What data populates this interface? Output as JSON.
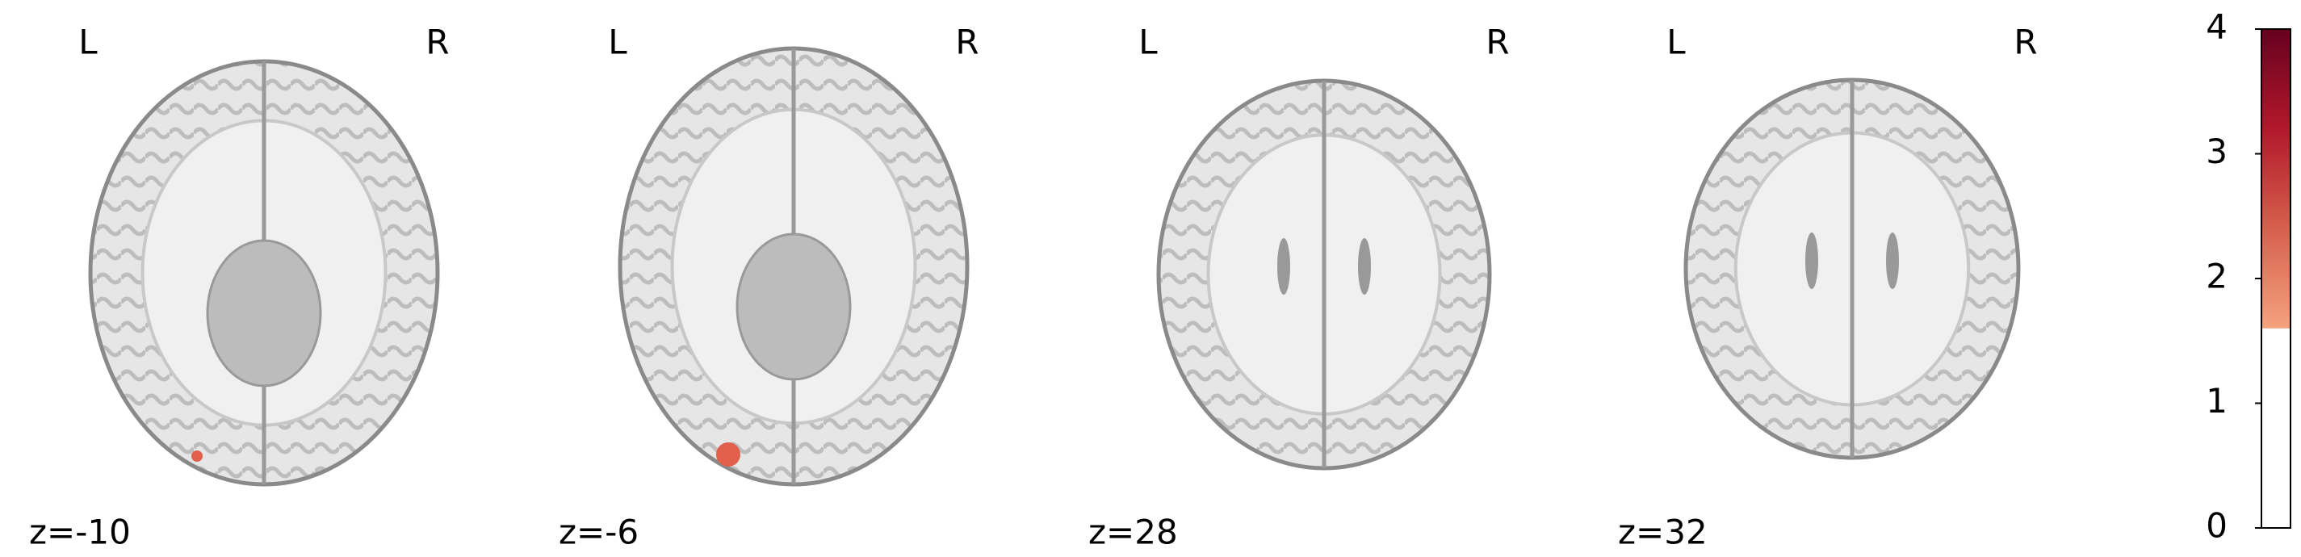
{
  "slices": [
    {
      "left": "L",
      "right": "R",
      "coord": "z=-10"
    },
    {
      "left": "L",
      "right": "R",
      "coord": "z=-6"
    },
    {
      "left": "L",
      "right": "R",
      "coord": "z=28"
    },
    {
      "left": "L",
      "right": "R",
      "coord": "z=32"
    }
  ],
  "chart_data": {
    "type": "colorbar",
    "ylim": [
      0,
      4
    ],
    "yticks": [
      0,
      1,
      2,
      3,
      4
    ],
    "threshold": 1.6,
    "colors": [
      "#f4a27f",
      "#d6604d",
      "#b2182b",
      "#67001f"
    ]
  }
}
